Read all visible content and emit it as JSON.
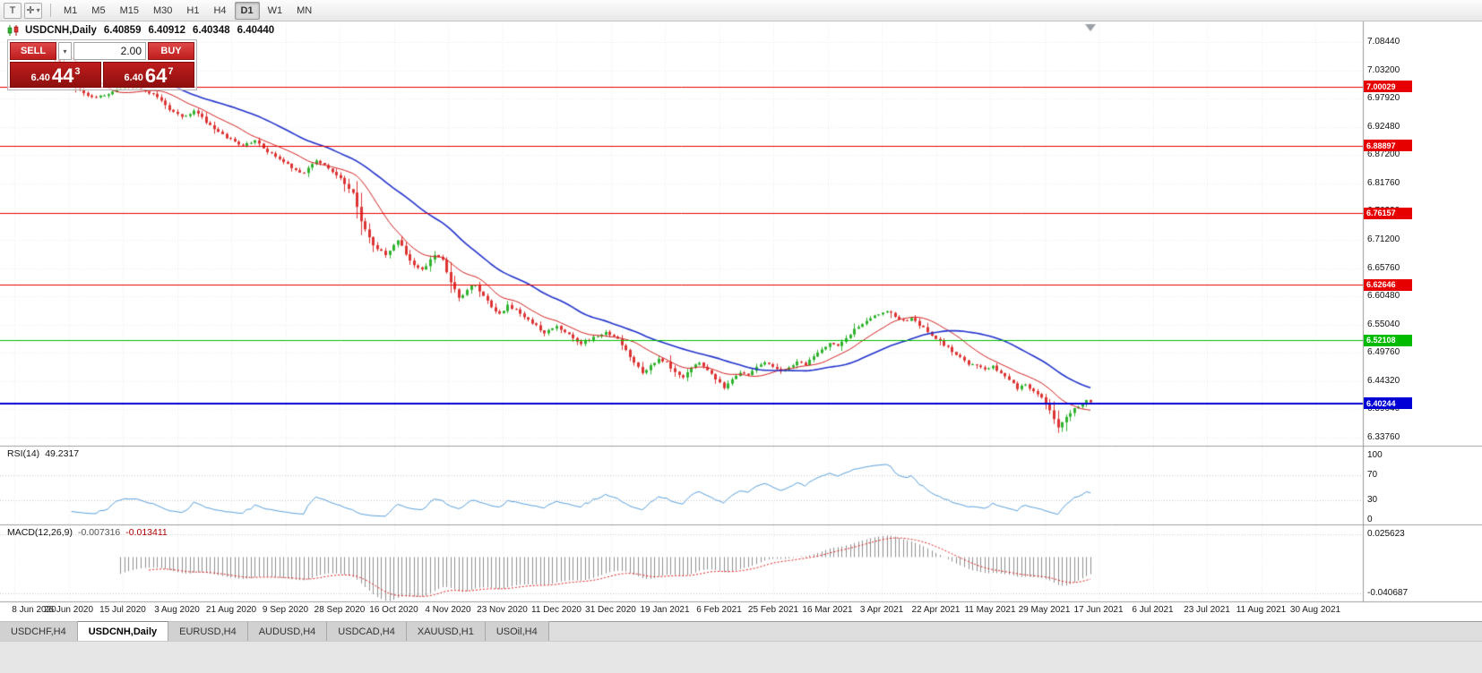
{
  "toolbar": {
    "text_tool": "T",
    "crosshair_tool": "✛",
    "dropdown_glyph": "▾",
    "timeframes": [
      "M1",
      "M5",
      "M15",
      "M30",
      "H1",
      "H4",
      "D1",
      "W1",
      "MN"
    ],
    "active_timeframe": "D1"
  },
  "chart_header": {
    "symbol_period": "USDCNH,Daily",
    "open": "6.40859",
    "high": "6.40912",
    "low": "6.40348",
    "close": "6.40440"
  },
  "one_click": {
    "sell_label": "SELL",
    "buy_label": "BUY",
    "volume": "2.00",
    "sell_price": {
      "figure": "6.40",
      "pips": "44",
      "point": "3"
    },
    "buy_price": {
      "figure": "6.40",
      "pips": "64",
      "point": "7"
    }
  },
  "price_axis_labels": [
    "7.08440",
    "7.03200",
    "6.97920",
    "6.92480",
    "6.87200",
    "6.81760",
    "6.76320",
    "6.71200",
    "6.65760",
    "6.60480",
    "6.55040",
    "6.49760",
    "6.44320",
    "6.39040",
    "6.33760"
  ],
  "hlines": [
    {
      "price": "7.00029",
      "value": 7.00029,
      "color": "#e60000",
      "width": 1
    },
    {
      "price": "6.88897",
      "value": 6.88897,
      "color": "#e60000",
      "width": 1
    },
    {
      "price": "6.76157",
      "value": 6.76157,
      "color": "#e60000",
      "width": 1
    },
    {
      "price": "6.62646",
      "value": 6.62646,
      "color": "#e60000",
      "width": 1
    },
    {
      "price": "6.52108",
      "value": 6.52108,
      "color": "#00bb00",
      "width": 1
    },
    {
      "price": "6.40244",
      "value": 6.40244,
      "color": "#0000d6",
      "width": 2
    }
  ],
  "date_axis_labels": [
    "8 Jun 2020",
    "26 Jun 2020",
    "15 Jul 2020",
    "3 Aug 2020",
    "21 Aug 2020",
    "9 Sep 2020",
    "28 Sep 2020",
    "16 Oct 2020",
    "4 Nov 2020",
    "23 Nov 2020",
    "11 Dec 2020",
    "31 Dec 2020",
    "19 Jan 2021",
    "6 Feb 2021",
    "25 Feb 2021",
    "16 Mar 2021",
    "3 Apr 2021",
    "22 Apr 2021",
    "11 May 2021",
    "29 May 2021",
    "17 Jun 2021",
    "6 Jul 2021",
    "23 Jul 2021",
    "11 Aug 2021",
    "30 Aug 2021"
  ],
  "rsi_panel": {
    "name": "RSI(14)",
    "value": "49.2317",
    "axis_labels": [
      "100",
      "70",
      "30",
      "0"
    ],
    "axis_values": [
      100,
      70,
      30,
      0
    ],
    "levels": [
      70,
      30
    ],
    "line_color": "#5aa0dc"
  },
  "macd_panel": {
    "name": "MACD(12,26,9)",
    "macd_value": "-0.007316",
    "signal_value": "-0.013411",
    "axis_labels": [
      "0.025623",
      "-0.040687"
    ],
    "axis_max": 0.025623,
    "axis_min": -0.040687
  },
  "tabs": {
    "items": [
      {
        "label": "USDCHF,H4",
        "active": false
      },
      {
        "label": "USDCNH,Daily",
        "active": true
      },
      {
        "label": "EURUSD,H4",
        "active": false
      },
      {
        "label": "AUDUSD,H4",
        "active": false
      },
      {
        "label": "USDCAD,H4",
        "active": false
      },
      {
        "label": "XAUUSD,H1",
        "active": false
      },
      {
        "label": "USOil,H4",
        "active": false
      }
    ]
  },
  "chart_data": {
    "type": "candlestick",
    "symbol": "USDCNH",
    "timeframe": "Daily",
    "title": "USDCNH,Daily",
    "price_range": {
      "top": 7.0844,
      "bottom": 6.3376
    },
    "current_ohlc": {
      "open": 6.40859,
      "high": 6.40912,
      "low": 6.40348,
      "close": 6.4044
    },
    "total_candles": 265,
    "up_color": "#2fb32f",
    "down_color": "#dd3333",
    "ma_fast": {
      "period": 13,
      "color": "#d42020"
    },
    "ma_slow": {
      "period": 34,
      "color": "#2233cc"
    },
    "horizontal_levels": [
      7.00029,
      6.88897,
      6.76157,
      6.62646,
      6.52108,
      6.40244
    ],
    "indicators": [
      {
        "name": "RSI",
        "period": 14,
        "current": 49.2317,
        "range": [
          0,
          100
        ],
        "levels": [
          30,
          70
        ]
      },
      {
        "name": "MACD",
        "params": [
          12,
          26,
          9
        ],
        "current_macd": -0.007316,
        "current_signal": -0.013411,
        "axis": [
          0.025623,
          -0.040687
        ]
      }
    ],
    "close_anchors": [
      [
        0,
        7.072
      ],
      [
        3,
        7.078
      ],
      [
        6,
        7.068
      ],
      [
        9,
        7.062
      ],
      [
        12,
        7.035
      ],
      [
        14,
        7.002
      ],
      [
        16,
        6.993
      ],
      [
        18,
        6.985
      ],
      [
        20,
        6.979
      ],
      [
        23,
        6.988
      ],
      [
        26,
        6.997
      ],
      [
        29,
        6.999
      ],
      [
        32,
        6.992
      ],
      [
        35,
        6.981
      ],
      [
        38,
        6.958
      ],
      [
        41,
        6.942
      ],
      [
        44,
        6.955
      ],
      [
        47,
        6.934
      ],
      [
        50,
        6.915
      ],
      [
        53,
        6.9
      ],
      [
        56,
        6.888
      ],
      [
        59,
        6.9
      ],
      [
        62,
        6.878
      ],
      [
        65,
        6.862
      ],
      [
        68,
        6.848
      ],
      [
        71,
        6.836
      ],
      [
        74,
        6.862
      ],
      [
        77,
        6.846
      ],
      [
        80,
        6.826
      ],
      [
        83,
        6.8
      ],
      [
        85,
        6.744
      ],
      [
        88,
        6.7
      ],
      [
        91,
        6.682
      ],
      [
        94,
        6.712
      ],
      [
        97,
        6.671
      ],
      [
        100,
        6.654
      ],
      [
        103,
        6.683
      ],
      [
        105,
        6.672
      ],
      [
        107,
        6.632
      ],
      [
        109,
        6.6
      ],
      [
        111,
        6.617
      ],
      [
        113,
        6.628
      ],
      [
        115,
        6.603
      ],
      [
        117,
        6.586
      ],
      [
        119,
        6.571
      ],
      [
        121,
        6.587
      ],
      [
        123,
        6.579
      ],
      [
        125,
        6.566
      ],
      [
        127,
        6.554
      ],
      [
        130,
        6.536
      ],
      [
        133,
        6.549
      ],
      [
        136,
        6.531
      ],
      [
        139,
        6.516
      ],
      [
        142,
        6.526
      ],
      [
        145,
        6.536
      ],
      [
        148,
        6.526
      ],
      [
        150,
        6.502
      ],
      [
        152,
        6.477
      ],
      [
        154,
        6.461
      ],
      [
        156,
        6.473
      ],
      [
        158,
        6.486
      ],
      [
        160,
        6.479
      ],
      [
        162,
        6.461
      ],
      [
        164,
        6.453
      ],
      [
        166,
        6.469
      ],
      [
        168,
        6.479
      ],
      [
        170,
        6.463
      ],
      [
        172,
        6.449
      ],
      [
        174,
        6.431
      ],
      [
        176,
        6.446
      ],
      [
        178,
        6.461
      ],
      [
        180,
        6.456
      ],
      [
        182,
        6.469
      ],
      [
        184,
        6.481
      ],
      [
        186,
        6.473
      ],
      [
        188,
        6.463
      ],
      [
        190,
        6.469
      ],
      [
        192,
        6.483
      ],
      [
        194,
        6.476
      ],
      [
        196,
        6.491
      ],
      [
        198,
        6.503
      ],
      [
        200,
        6.516
      ],
      [
        202,
        6.509
      ],
      [
        204,
        6.526
      ],
      [
        206,
        6.541
      ],
      [
        208,
        6.554
      ],
      [
        210,
        6.563
      ],
      [
        212,
        6.571
      ],
      [
        214,
        6.578
      ],
      [
        216,
        6.566
      ],
      [
        218,
        6.557
      ],
      [
        220,
        6.563
      ],
      [
        222,
        6.549
      ],
      [
        224,
        6.539
      ],
      [
        226,
        6.526
      ],
      [
        228,
        6.513
      ],
      [
        230,
        6.501
      ],
      [
        232,
        6.491
      ],
      [
        234,
        6.478
      ],
      [
        236,
        6.472
      ],
      [
        238,
        6.466
      ],
      [
        240,
        6.472
      ],
      [
        242,
        6.459
      ],
      [
        244,
        6.446
      ],
      [
        246,
        6.431
      ],
      [
        248,
        6.439
      ],
      [
        250,
        6.426
      ],
      [
        252,
        6.411
      ],
      [
        254,
        6.391
      ],
      [
        256,
        6.359
      ],
      [
        257,
        6.366
      ],
      [
        258,
        6.379
      ],
      [
        259,
        6.386
      ],
      [
        260,
        6.393
      ],
      [
        261,
        6.397
      ],
      [
        262,
        6.401
      ],
      [
        263,
        6.4086
      ],
      [
        264,
        6.4044
      ]
    ]
  }
}
